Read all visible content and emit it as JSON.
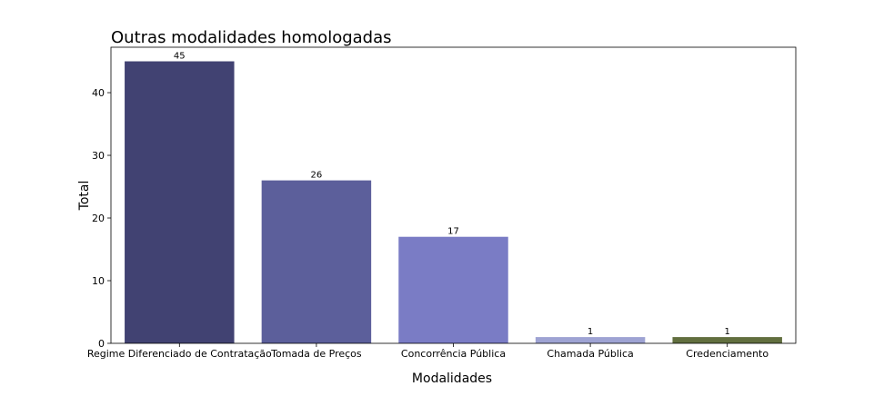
{
  "chart_data": {
    "type": "bar",
    "title": "Outras modalidades homologadas",
    "xlabel": "Modalidades",
    "ylabel": "Total",
    "categories": [
      "Regime Diferenciado de Contratação",
      "Tomada de Preços",
      "Concorrência Pública",
      "Chamada Pública",
      "Credenciamento"
    ],
    "values": [
      45,
      26,
      17,
      1,
      1
    ],
    "value_labels": [
      "45",
      "26",
      "17",
      "1",
      "1"
    ],
    "colors": [
      "#414272",
      "#5c5f9b",
      "#7a7cc5",
      "#9ea3d3",
      "#626f3f"
    ],
    "ylim": [
      0,
      47.25
    ],
    "yticks": [
      0,
      10,
      20,
      30,
      40
    ],
    "ytick_labels": [
      "0",
      "10",
      "20",
      "30",
      "40"
    ],
    "grid": false,
    "legend": "none"
  }
}
